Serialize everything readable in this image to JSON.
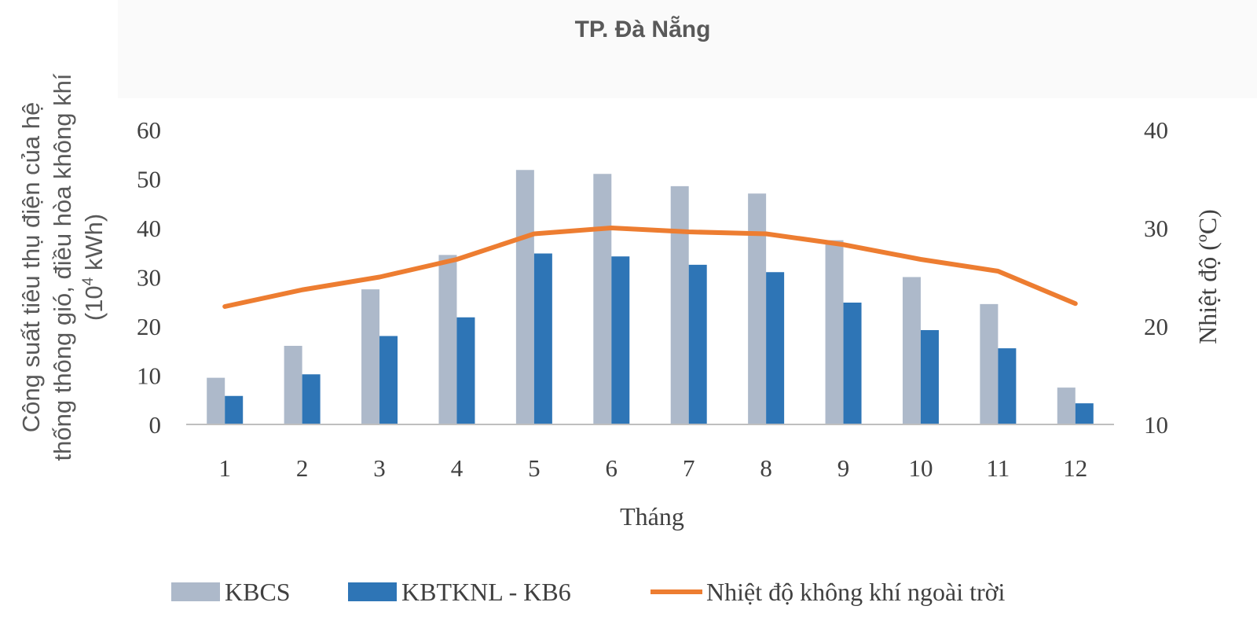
{
  "chart_data": {
    "type": "bar",
    "title": "TP. Đà Nẵng",
    "xlabel": "Tháng",
    "ylabel_lines": [
      "Công suất tiêu thụ điện của hệ",
      "thống thông gió,  điều hòa không khí",
      "(10",
      "4",
      " kWh)"
    ],
    "y2label": "Nhiệt độ (ºC)",
    "categories": [
      "1",
      "2",
      "3",
      "4",
      "5",
      "6",
      "7",
      "8",
      "9",
      "10",
      "11",
      "12"
    ],
    "ylim": [
      0,
      60
    ],
    "yticks": [
      "0",
      "10",
      "20",
      "30",
      "40",
      "50",
      "60"
    ],
    "y2lim": [
      10,
      40
    ],
    "y2ticks": [
      "10",
      "20",
      "30",
      "40"
    ],
    "series": [
      {
        "name": "KBCS",
        "kind": "bar",
        "color": "#adb9ca",
        "values": [
          9.5,
          16.0,
          27.5,
          34.5,
          51.8,
          51.0,
          48.5,
          47.0,
          37.5,
          30.0,
          24.5,
          7.5
        ]
      },
      {
        "name": "KBTKNL - KB6",
        "kind": "bar",
        "color": "#2e75b6",
        "values": [
          5.8,
          10.2,
          18.0,
          21.8,
          34.8,
          34.2,
          32.5,
          31.0,
          24.8,
          19.2,
          15.5,
          4.3
        ]
      },
      {
        "name": "Nhiệt độ không khí ngoài trời",
        "kind": "line",
        "axis": "right",
        "color": "#ed7d31",
        "values": [
          22.0,
          23.7,
          25.0,
          26.8,
          29.4,
          30.0,
          29.6,
          29.4,
          28.3,
          26.8,
          25.6,
          22.3
        ]
      }
    ],
    "grid": false,
    "legend_position": "bottom"
  }
}
